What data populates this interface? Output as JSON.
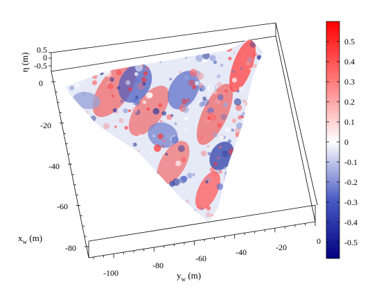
{
  "chart_data": {
    "type": "surface-3d",
    "title": "",
    "colormap": {
      "low": "#000080",
      "mid": "#ffffff",
      "high": "#ff0000"
    },
    "x_axis": {
      "label_main": "x",
      "label_sub": "w",
      "label_unit": " (m)",
      "ticks": [
        "0",
        "-20",
        "-40",
        "-60",
        "-80"
      ],
      "range": [
        -80,
        0
      ]
    },
    "y_axis": {
      "label_main": "y",
      "label_sub": "w",
      "label_unit": " (m)",
      "ticks": [
        "-100",
        "-80",
        "-60",
        "-40",
        "-20",
        "0"
      ],
      "range": [
        -110,
        0
      ]
    },
    "z_axis": {
      "label": "η (m)",
      "ticks": [
        "0.5",
        "0",
        "-0.5"
      ],
      "range": [
        -0.5,
        0.5
      ]
    },
    "colorbar": {
      "ticks": [
        "0.5",
        "0.4",
        "0.3",
        "0.2",
        "0.1",
        "0",
        "-0.1",
        "-0.2",
        "-0.3",
        "-0.4",
        "-0.5"
      ],
      "values": [
        0.5,
        0.4,
        0.3,
        0.2,
        0.1,
        0,
        -0.1,
        -0.2,
        -0.3,
        -0.4,
        -0.5
      ],
      "range": [
        -0.58,
        0.6
      ]
    }
  }
}
